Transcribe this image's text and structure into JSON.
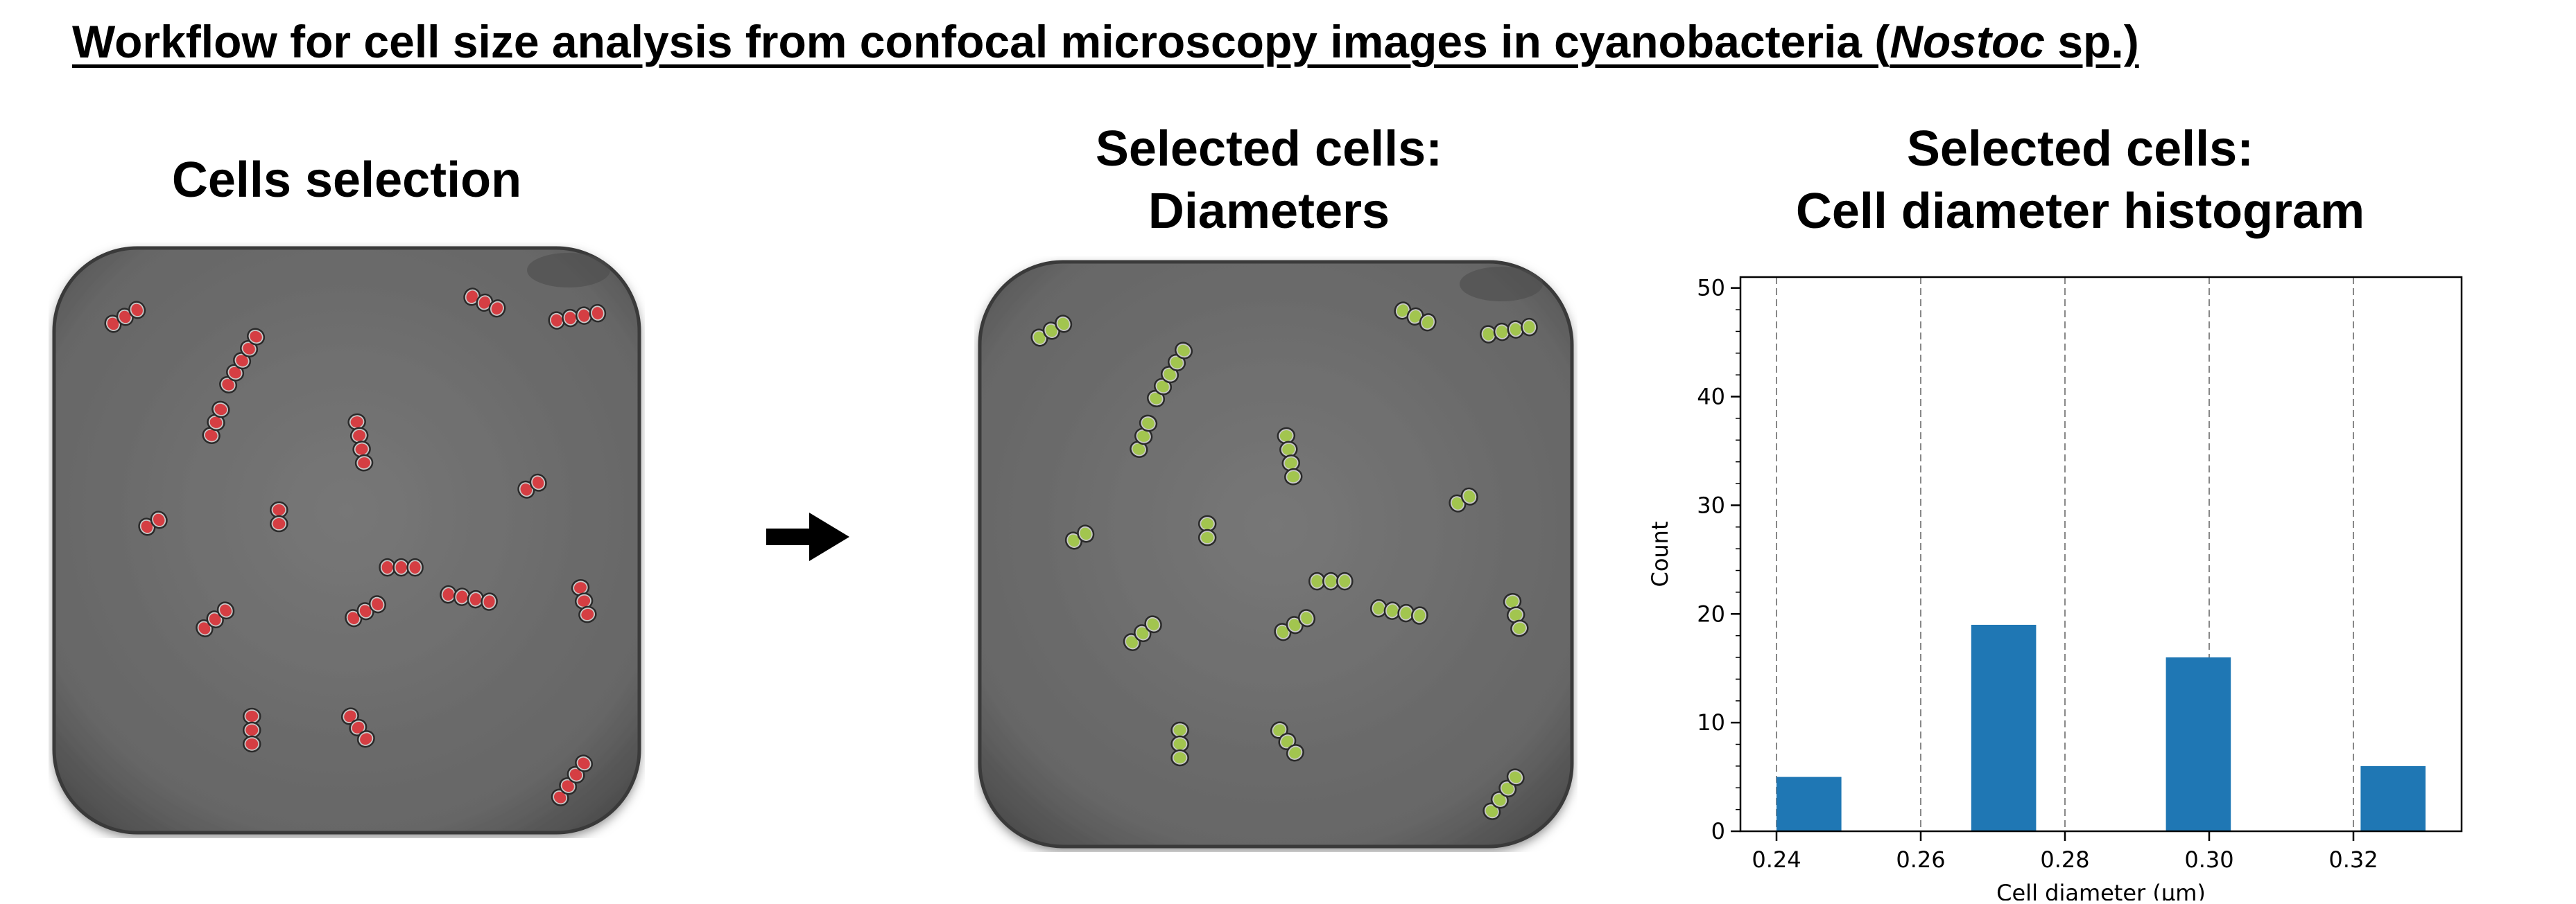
{
  "title": {
    "prefix": "Workflow for cell size analysis from confocal microscopy images in cyanobacteria (",
    "italic": "Nostoc",
    "suffix": " sp.)"
  },
  "panels": [
    {
      "heading_lines": [
        "Cells selection"
      ],
      "overlay": "red"
    },
    {
      "heading_lines": [
        "Selected cells:",
        "Diameters"
      ],
      "overlay": "green"
    },
    {
      "heading_lines": [
        "Selected cells:",
        "Cell diameter histogram"
      ]
    }
  ],
  "colors": {
    "red_cells": "#d7262b",
    "green_cells": "#9bc43a",
    "bar": "#1f77b4",
    "background_img": "#6e6e6e"
  },
  "chart_data": {
    "type": "bar",
    "title": "",
    "xlabel": "Cell diameter (µm)",
    "ylabel": "Count",
    "xlim": [
      0.235,
      0.335
    ],
    "ylim": [
      0,
      51
    ],
    "xticks": [
      "0.24",
      "0.26",
      "0.28",
      "0.30",
      "0.32"
    ],
    "yticks": [
      "0",
      "10",
      "20",
      "30",
      "40",
      "50"
    ],
    "grid": "x-dashed",
    "bins": [
      {
        "x0": 0.24,
        "x1": 0.249,
        "value": 5
      },
      {
        "x0": 0.267,
        "x1": 0.276,
        "value": 19
      },
      {
        "x0": 0.294,
        "x1": 0.303,
        "value": 16
      },
      {
        "x0": 0.321,
        "x1": 0.33,
        "value": 6
      }
    ]
  }
}
